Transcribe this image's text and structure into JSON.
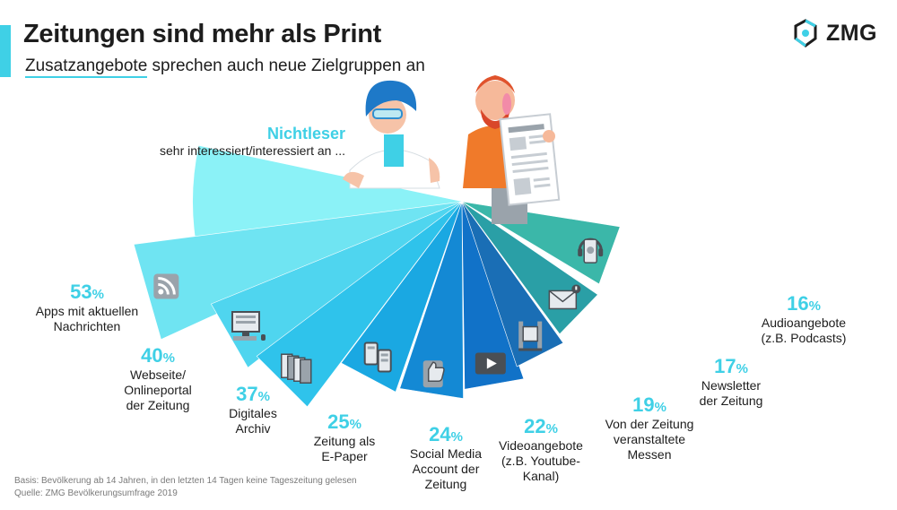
{
  "header": {
    "title": "Zeitungen sind mehr als Print",
    "subtitle_highlight": "Zusatzangebote",
    "subtitle_rest": " sprechen auch neue Zielgruppen an",
    "logo": "ZMG"
  },
  "legend": {
    "head": "Nichtleser",
    "sub": "sehr interessiert/interessiert an ..."
  },
  "footer": {
    "basis": "Basis: Bevölkerung ab 14 Jahren, in den letzten 14 Tagen keine Tageszeitung gelesen",
    "source": "Quelle: ZMG Bevölkerungsumfrage 2019"
  },
  "colors": {
    "accent": "#3fd0e6",
    "text": "#1d1d1d",
    "fan": [
      "#8bf2f7",
      "#6fe4f2",
      "#4fd5ef",
      "#2fc3eb",
      "#1aa8e2",
      "#1489d4",
      "#1172c8",
      "#1a6eb5",
      "#2a9fa6",
      "#3bb7a9"
    ]
  },
  "chart_data": {
    "type": "bar",
    "title": "Zeitungen sind mehr als Print",
    "unit": "%",
    "categories": [
      "Apps mit aktuellen Nachrichten",
      "Webseite/ Onlineportal der Zeitung",
      "Digitales Archiv",
      "Zeitung als E-Paper",
      "Social Media Account der Zeitung",
      "Videoangebote (z.B. Youtube-Kanal)",
      "Von der Zeitung veranstaltete Messen",
      "Newsletter der Zeitung",
      "Audioangebote (z.B. Podcasts)"
    ],
    "label_lines": [
      [
        "Apps mit aktuellen",
        "Nachrichten"
      ],
      [
        "Webseite/",
        "Onlineportal",
        "der Zeitung"
      ],
      [
        "Digitales",
        "Archiv"
      ],
      [
        "Zeitung als",
        "E-Paper"
      ],
      [
        "Social Media",
        "Account der",
        "Zeitung"
      ],
      [
        "Videoangebote",
        "(z.B. Youtube-",
        "Kanal)"
      ],
      [
        "Von der Zeitung",
        "veranstaltete",
        "Messen"
      ],
      [
        "Newsletter",
        "der Zeitung"
      ],
      [
        "Audioangebote",
        "(z.B. Podcasts)"
      ]
    ],
    "values": [
      53,
      40,
      37,
      25,
      24,
      22,
      19,
      17,
      16
    ],
    "value_labels": [
      "53",
      "40",
      "37",
      "25",
      "24",
      "22",
      "19",
      "17",
      "16"
    ],
    "icons": [
      "rss-icon",
      "computer-icon",
      "archive-icon",
      "tablet-icon",
      "thumbs-up-icon",
      "video-play-icon",
      "exhibition-stand-icon",
      "mail-icon",
      "audio-icon"
    ]
  }
}
